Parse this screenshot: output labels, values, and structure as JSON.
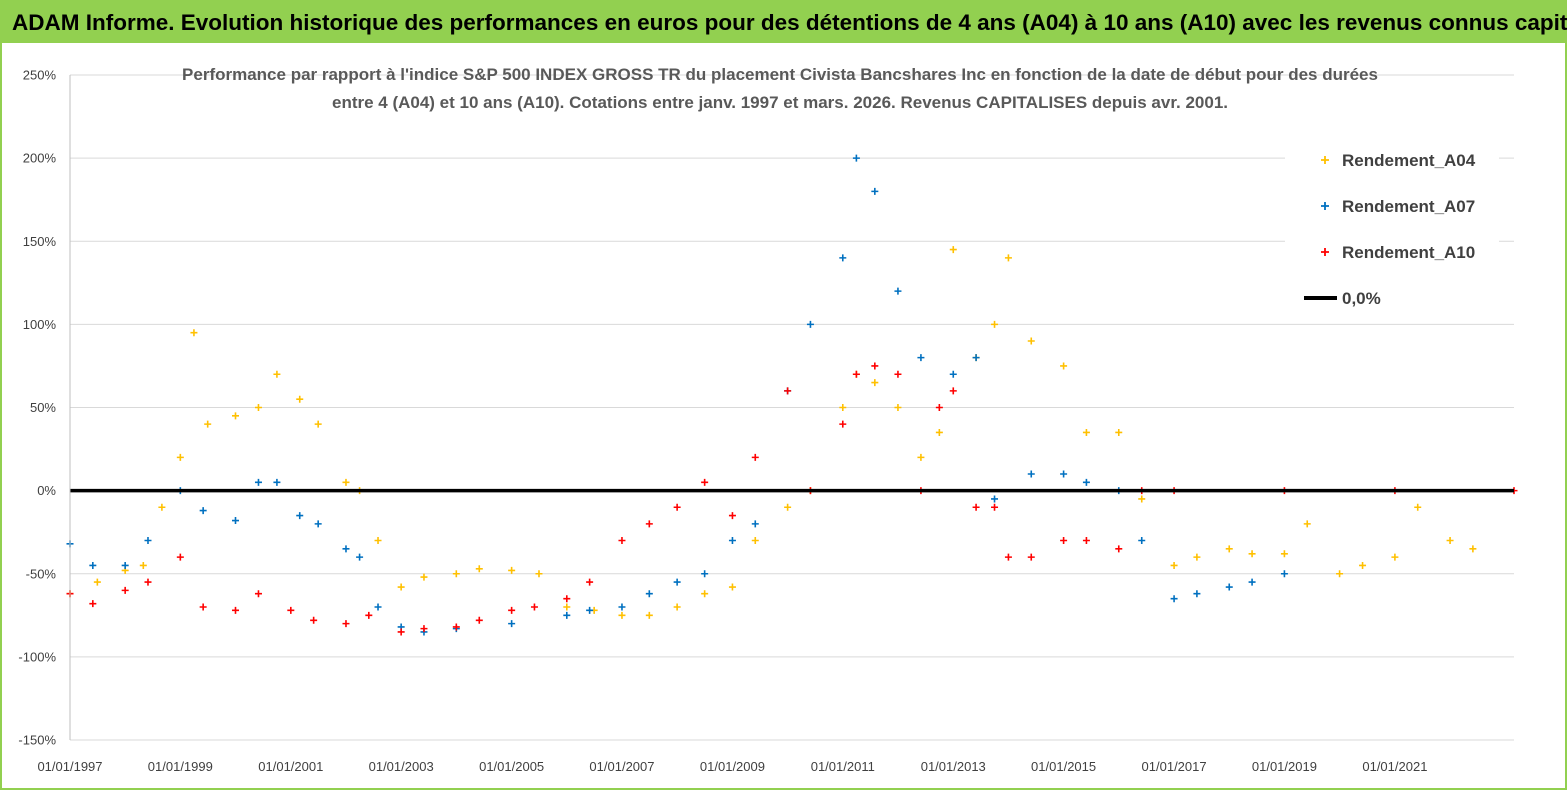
{
  "header": {
    "banner": "ADAM Informe. Evolution historique des performances en euros pour des détentions de 4 ans (A04) à 10 ans (A10) avec les revenus connus capitalisés"
  },
  "colors": {
    "banner_bg": "#92d050",
    "A04": "#ffc000",
    "A07": "#0070c0",
    "A10": "#ff0000",
    "zero": "#000000",
    "grid": "#d9d9d9"
  },
  "chart_data": {
    "type": "scatter",
    "title_lines": [
      "Performance par rapport à l'indice S&P 500 INDEX GROSS TR  du placement Civista Bancshares Inc en fonction de la date de début pour des durées",
      "entre 4 (A04) et 10 ans (A10). Cotations entre janv. 1997 et mars. 2026. Revenus CAPITALISES depuis avr. 2001."
    ],
    "ylim": [
      -150,
      250
    ],
    "y_ticks": [
      "250%",
      "200%",
      "150%",
      "100%",
      "50%",
      "0%",
      "-50%",
      "-100%",
      "-150%"
    ],
    "xlim": [
      "1997-01-01",
      "2023-02-28"
    ],
    "x_ticks": [
      "01/01/1997",
      "01/01/1999",
      "01/01/2001",
      "01/01/2003",
      "01/01/2005",
      "01/01/2007",
      "01/01/2009",
      "01/01/2011",
      "01/01/2013",
      "01/01/2015",
      "01/01/2017",
      "01/01/2019",
      "01/01/2021"
    ],
    "grid": true,
    "legend_position": "top-right",
    "legend": [
      "Rendement_A04",
      "Rendement_A07",
      "Rendement_A10",
      "0,0%"
    ],
    "series": [
      {
        "name": "Rendement_A04",
        "x": [
          "1997-01-01",
          "1997-07-01",
          "1998-01-01",
          "1998-05-01",
          "1998-09-01",
          "1999-01-01",
          "1999-04-01",
          "1999-07-01",
          "2000-01-01",
          "2000-06-01",
          "2000-10-01",
          "2001-03-01",
          "2001-07-01",
          "2002-01-01",
          "2002-04-01",
          "2002-08-01",
          "2003-01-01",
          "2003-06-01",
          "2004-01-01",
          "2004-06-01",
          "2005-01-01",
          "2005-07-01",
          "2006-01-01",
          "2006-07-01",
          "2007-01-01",
          "2007-07-01",
          "2008-01-01",
          "2008-07-01",
          "2009-01-01",
          "2009-06-01",
          "2010-01-01",
          "2010-06-01",
          "2011-01-01",
          "2011-04-01",
          "2011-08-01",
          "2012-01-01",
          "2012-06-01",
          "2012-10-01",
          "2013-01-01",
          "2013-06-01",
          "2013-10-01",
          "2014-01-01",
          "2014-06-01",
          "2015-01-01",
          "2015-06-01",
          "2016-01-01",
          "2016-06-01",
          "2017-01-01",
          "2017-06-01",
          "2018-01-01",
          "2018-06-01",
          "2019-01-01",
          "2019-06-01",
          "2020-01-01",
          "2020-06-01",
          "2021-01-01",
          "2021-06-01",
          "2022-01-01",
          "2022-06-01"
        ],
        "y": [
          -62,
          -55,
          -48,
          -45,
          -10,
          20,
          95,
          40,
          45,
          50,
          70,
          55,
          40,
          5,
          0,
          -30,
          -58,
          -52,
          -50,
          -47,
          -48,
          -50,
          -70,
          -72,
          -75,
          -75,
          -70,
          -62,
          -58,
          -30,
          -10,
          0,
          50,
          70,
          65,
          50,
          20,
          35,
          145,
          80,
          100,
          140,
          90,
          75,
          35,
          35,
          -5,
          -45,
          -40,
          -35,
          -38,
          -38,
          -20,
          -50,
          -45,
          -40,
          -10,
          -30,
          -35
        ]
      },
      {
        "name": "Rendement_A07",
        "x": [
          "1997-01-01",
          "1997-06-01",
          "1998-01-01",
          "1998-06-01",
          "1999-01-01",
          "1999-06-01",
          "2000-01-01",
          "2000-06-01",
          "2000-10-01",
          "2001-03-01",
          "2001-07-01",
          "2002-01-01",
          "2002-04-01",
          "2002-08-01",
          "2003-01-01",
          "2003-06-01",
          "2004-01-01",
          "2005-01-01",
          "2006-01-01",
          "2006-06-01",
          "2007-01-01",
          "2007-07-01",
          "2008-01-01",
          "2008-07-01",
          "2009-01-01",
          "2009-06-01",
          "2010-01-01",
          "2010-06-01",
          "2011-01-01",
          "2011-04-01",
          "2011-08-01",
          "2012-01-01",
          "2012-06-01",
          "2013-01-01",
          "2013-06-01",
          "2013-10-01",
          "2014-06-01",
          "2015-01-01",
          "2015-06-01",
          "2016-01-01",
          "2016-06-01",
          "2017-01-01",
          "2017-06-01",
          "2018-01-01",
          "2018-06-01",
          "2019-01-01"
        ],
        "y": [
          -32,
          -45,
          -45,
          -30,
          0,
          -12,
          -18,
          5,
          5,
          -15,
          -20,
          -35,
          -40,
          -70,
          -82,
          -85,
          -83,
          -80,
          -75,
          -72,
          -70,
          -62,
          -55,
          -50,
          -30,
          -20,
          60,
          100,
          140,
          200,
          180,
          120,
          80,
          70,
          80,
          -5,
          10,
          10,
          5,
          0,
          -30,
          -65,
          -62,
          -58,
          -55,
          -50
        ]
      },
      {
        "name": "Rendement_A10",
        "x": [
          "1997-01-01",
          "1997-06-01",
          "1998-01-01",
          "1998-06-01",
          "1999-01-01",
          "1999-06-01",
          "2000-01-01",
          "2000-06-01",
          "2001-01-01",
          "2001-06-01",
          "2002-01-01",
          "2002-06-01",
          "2003-01-01",
          "2003-06-01",
          "2004-01-01",
          "2004-06-01",
          "2005-01-01",
          "2005-06-01",
          "2006-01-01",
          "2006-06-01",
          "2007-01-01",
          "2007-07-01",
          "2008-01-01",
          "2008-07-01",
          "2009-01-01",
          "2009-06-01",
          "2010-01-01",
          "2010-06-01",
          "2011-01-01",
          "2011-04-01",
          "2011-08-01",
          "2012-01-01",
          "2012-06-01",
          "2012-10-01",
          "2013-01-01",
          "2013-06-01",
          "2013-10-01",
          "2014-01-01",
          "2014-06-01",
          "2015-01-01",
          "2015-06-01",
          "2016-01-01",
          "2016-06-01",
          "2017-01-01",
          "2019-01-01",
          "2021-01-01",
          "2023-02-28"
        ],
        "y": [
          -62,
          -68,
          -60,
          -55,
          -40,
          -70,
          -72,
          -62,
          -72,
          -78,
          -80,
          -75,
          -85,
          -83,
          -82,
          -78,
          -72,
          -70,
          -65,
          -55,
          -30,
          -20,
          -10,
          5,
          -15,
          20,
          60,
          0,
          40,
          70,
          75,
          70,
          0,
          50,
          60,
          -10,
          -10,
          -40,
          -40,
          -30,
          -30,
          -35,
          0,
          0,
          0,
          0,
          0
        ]
      }
    ]
  }
}
